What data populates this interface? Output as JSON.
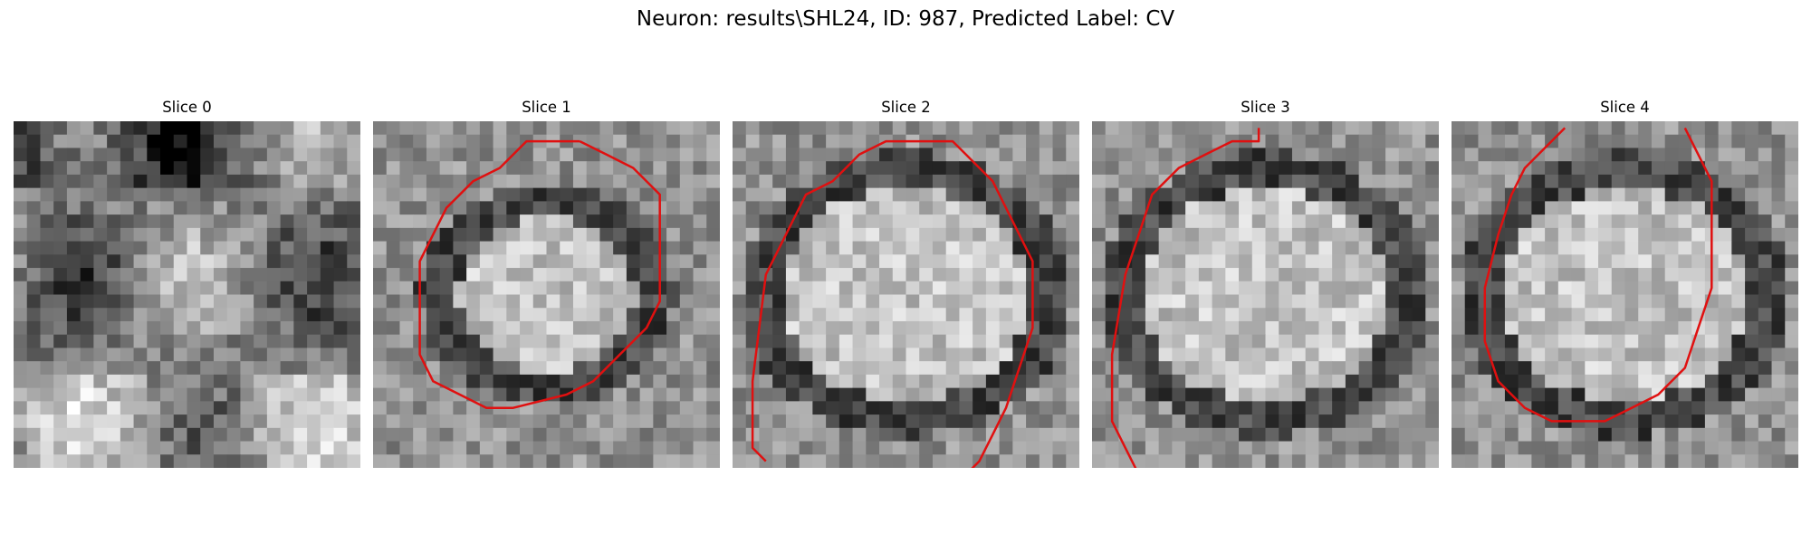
{
  "figure": {
    "title": "Neuron: results\\SHL24, ID: 987, Predicted Label: CV",
    "contour_color": "#e01010"
  },
  "panels": [
    {
      "title": "Slice 0",
      "seed": 11,
      "pattern": "diffuse",
      "outline": []
    },
    {
      "title": "Slice 1",
      "seed": 23,
      "pattern": "cell_small",
      "outline": [
        [
          15,
          1
        ],
        [
          17,
          2
        ],
        [
          19,
          3
        ],
        [
          21,
          5
        ],
        [
          21,
          9
        ],
        [
          21,
          13
        ],
        [
          20,
          15
        ],
        [
          18,
          17
        ],
        [
          16,
          19
        ],
        [
          14,
          20
        ],
        [
          10,
          21
        ],
        [
          8,
          21
        ],
        [
          6,
          20
        ],
        [
          4,
          19
        ],
        [
          3,
          17
        ],
        [
          3,
          10
        ],
        [
          4,
          8
        ],
        [
          5,
          6
        ],
        [
          7,
          4
        ],
        [
          9,
          3
        ],
        [
          11,
          1
        ],
        [
          13,
          1
        ]
      ]
    },
    {
      "title": "Slice 2",
      "seed": 37,
      "pattern": "cell_large",
      "outline": [
        [
          2,
          25
        ],
        [
          1,
          24
        ],
        [
          1,
          19
        ],
        [
          2,
          11
        ],
        [
          3,
          9
        ],
        [
          4,
          7
        ],
        [
          5,
          5
        ],
        [
          7,
          4
        ],
        [
          8,
          3
        ],
        [
          9,
          2
        ],
        [
          11,
          1
        ],
        [
          13,
          1
        ],
        [
          16,
          1
        ],
        [
          17,
          2
        ],
        [
          19,
          4
        ],
        [
          20,
          6
        ],
        [
          21,
          8
        ],
        [
          22,
          10
        ],
        [
          22,
          12
        ],
        [
          22,
          15
        ],
        [
          21,
          18
        ],
        [
          20,
          21
        ],
        [
          19,
          23
        ],
        [
          18,
          25
        ],
        [
          17,
          26
        ]
      ]
    },
    {
      "title": "Slice 3",
      "seed": 51,
      "pattern": "cell_large",
      "outline": [
        [
          3,
          26
        ],
        [
          2,
          24
        ],
        [
          1,
          22
        ],
        [
          1,
          17
        ],
        [
          2,
          11
        ],
        [
          3,
          8
        ],
        [
          4,
          5
        ],
        [
          6,
          3
        ],
        [
          8,
          2
        ],
        [
          10,
          1
        ],
        [
          12,
          1
        ],
        [
          12,
          0
        ]
      ]
    },
    {
      "title": "Slice 4",
      "seed": 67,
      "pattern": "cell_large",
      "outline": [
        [
          8,
          0
        ],
        [
          5,
          3
        ],
        [
          4,
          5
        ],
        [
          3,
          8
        ],
        [
          2,
          12
        ],
        [
          2,
          16
        ],
        [
          3,
          19
        ],
        [
          5,
          21
        ],
        [
          7,
          22
        ],
        [
          9,
          22
        ],
        [
          11,
          22
        ],
        [
          13,
          21
        ],
        [
          15,
          20
        ],
        [
          17,
          18
        ],
        [
          18,
          15
        ],
        [
          19,
          12
        ],
        [
          19,
          8
        ],
        [
          19,
          4
        ],
        [
          18,
          2
        ],
        [
          17,
          0
        ]
      ]
    }
  ]
}
